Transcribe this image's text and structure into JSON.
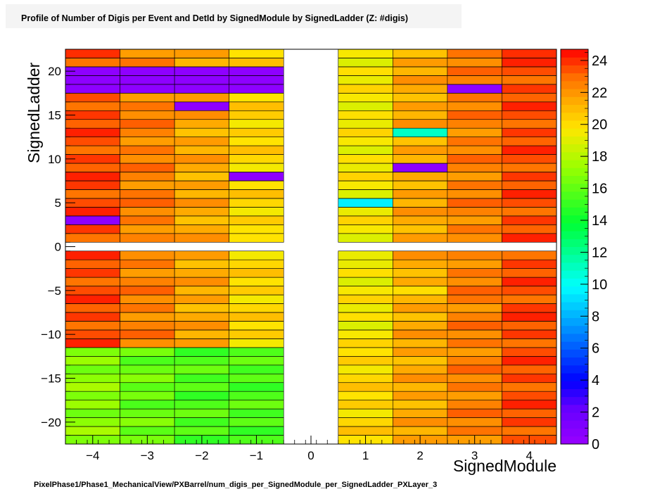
{
  "title": "Profile of Number of Digis per Event and DetId by SignedModule by SignedLadder (Z: #digis)",
  "footer": "PixelPhase1/Phase1_MechanicalView/PXBarrel/num_digis_per_SignedModule_per_SignedLadder_PXLayer_3",
  "chart_data": {
    "type": "heatmap",
    "title": "Profile of Number of Digis per Event and DetId by SignedModule by SignedLadder (Z: #digis)",
    "xlabel": "SignedModule",
    "ylabel": "SignedLadder",
    "xlim": [
      -4.5,
      4.5
    ],
    "ylim": [
      -22.5,
      22.5
    ],
    "zlim": [
      0,
      24.7
    ],
    "colorscale": "kRainBow",
    "x_ticks": [
      -4,
      -3,
      -2,
      -1,
      0,
      1,
      2,
      3,
      4
    ],
    "x_tick_labels": [
      "−4",
      "−3",
      "−2",
      "−1",
      "0",
      "1",
      "2",
      "3",
      "4"
    ],
    "y_ticks": [
      -20,
      -15,
      -10,
      -5,
      0,
      5,
      10,
      15,
      20
    ],
    "y_tick_labels": [
      "−20",
      "−15",
      "−10",
      "−5",
      "0",
      "5",
      "10",
      "15",
      "20"
    ],
    "z_ticks": [
      0,
      2,
      4,
      6,
      8,
      10,
      12,
      14,
      16,
      18,
      20,
      22,
      24
    ],
    "z_tick_labels": [
      "0",
      "2",
      "4",
      "6",
      "8",
      "10",
      "12",
      "14",
      "16",
      "18",
      "20",
      "22",
      "24"
    ],
    "modules": [
      -4,
      -3,
      -2,
      -1,
      1,
      2,
      3,
      4
    ],
    "ladders_top": [
      1,
      2,
      3,
      4,
      5,
      6,
      7,
      8,
      9,
      10,
      11,
      12,
      13,
      14,
      15,
      16,
      17,
      18,
      19,
      20,
      21,
      22
    ],
    "ladders_bottom": [
      -22,
      -21,
      -20,
      -19,
      -18,
      -17,
      -16,
      -15,
      -14,
      -13,
      -12,
      -11,
      -10,
      -9,
      -8,
      -7,
      -6,
      -5,
      -4,
      -3,
      -2,
      -1
    ],
    "base_top": [
      23.5,
      22.5,
      21.5,
      20.2,
      19.6,
      21.5,
      22.5,
      23.5
    ],
    "base_bottom_upper": [
      23.5,
      22.5,
      21.5,
      20.2,
      19.6,
      21.5,
      22.5,
      23.5
    ],
    "base_bottom_lower": [
      17.0,
      16.2,
      15.6,
      15.6,
      20.2,
      21.5,
      22.5,
      23.5
    ],
    "bottom_lower_threshold": -12,
    "special_cells": [
      {
        "module": -4,
        "ladder": 3,
        "value": 0.5
      },
      {
        "module": 1,
        "ladder": 5,
        "value": 9.5
      },
      {
        "module": -1,
        "ladder": 8,
        "value": 0.5
      },
      {
        "module": 2,
        "ladder": 9,
        "value": 0.5
      },
      {
        "module": 2,
        "ladder": 13,
        "value": 11.0
      },
      {
        "module": -2,
        "ladder": 16,
        "value": 0.5
      },
      {
        "module": -4,
        "ladder": 18,
        "value": 0.5
      },
      {
        "module": -3,
        "ladder": 18,
        "value": 0.5
      },
      {
        "module": -2,
        "ladder": 18,
        "value": 0.5
      },
      {
        "module": -1,
        "ladder": 18,
        "value": 0.5
      },
      {
        "module": -4,
        "ladder": 19,
        "value": 0.5
      },
      {
        "module": -3,
        "ladder": 19,
        "value": 0.5
      },
      {
        "module": -2,
        "ladder": 19,
        "value": 0.5
      },
      {
        "module": -1,
        "ladder": 19,
        "value": 0.5
      },
      {
        "module": -4,
        "ladder": 20,
        "value": 0.5
      },
      {
        "module": -3,
        "ladder": 20,
        "value": 0.5
      },
      {
        "module": -2,
        "ladder": 20,
        "value": 0.5
      },
      {
        "module": -1,
        "ladder": 20,
        "value": 0.5
      },
      {
        "module": 3,
        "ladder": 18,
        "value": 0.5
      },
      {
        "module": -4,
        "ladder": 22,
        "value": 24.0
      },
      {
        "module": 4,
        "ladder": 22,
        "value": 24.0
      },
      {
        "module": -1,
        "ladder": 15,
        "value": 20.5
      },
      {
        "module": 2,
        "ladder": -5,
        "value": 20.0
      }
    ]
  }
}
